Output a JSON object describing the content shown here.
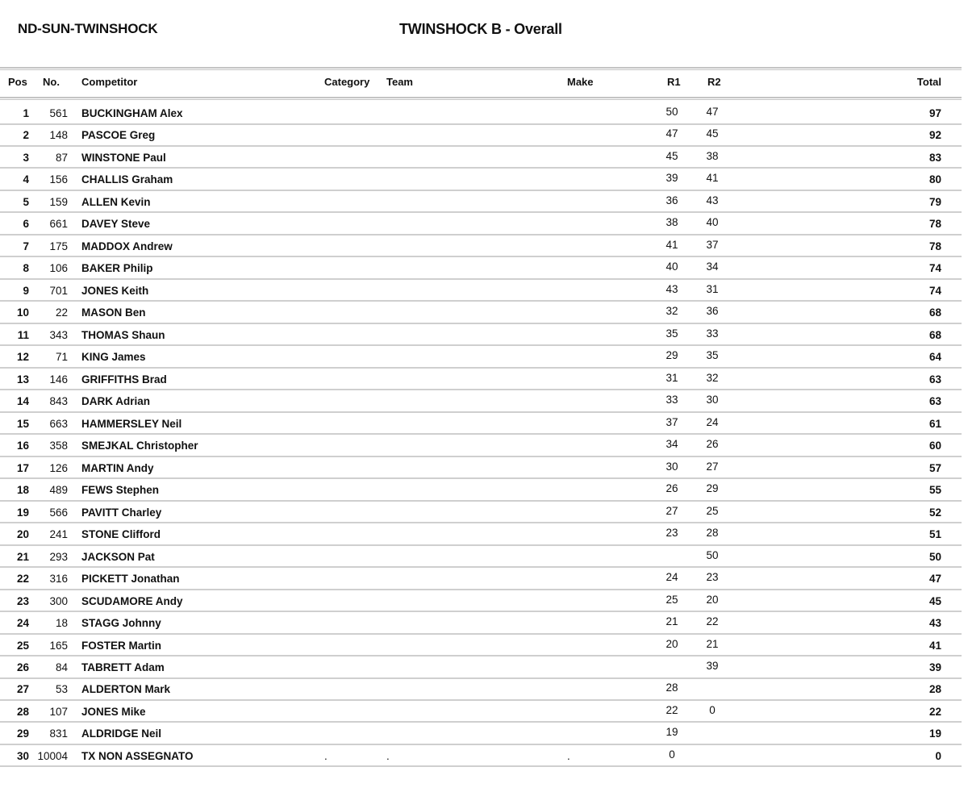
{
  "event_name": "ND-SUN-TWINSHOCK",
  "title": "TWINSHOCK B - Overall",
  "columns": {
    "pos": "Pos",
    "num": "No.",
    "competitor": "Competitor",
    "category": "Category",
    "team": "Team",
    "make": "Make",
    "r1": "R1",
    "r2": "R2",
    "total": "Total"
  },
  "rows": [
    {
      "pos": "1",
      "num": "561",
      "competitor": "BUCKINGHAM Alex",
      "category": "",
      "team": "",
      "make": "",
      "r1": "50",
      "r2": "47",
      "total": "97"
    },
    {
      "pos": "2",
      "num": "148",
      "competitor": "PASCOE Greg",
      "category": "",
      "team": "",
      "make": "",
      "r1": "47",
      "r2": "45",
      "total": "92"
    },
    {
      "pos": "3",
      "num": "87",
      "competitor": "WINSTONE Paul",
      "category": "",
      "team": "",
      "make": "",
      "r1": "45",
      "r2": "38",
      "total": "83"
    },
    {
      "pos": "4",
      "num": "156",
      "competitor": "CHALLIS Graham",
      "category": "",
      "team": "",
      "make": "",
      "r1": "39",
      "r2": "41",
      "total": "80"
    },
    {
      "pos": "5",
      "num": "159",
      "competitor": "ALLEN Kevin",
      "category": "",
      "team": "",
      "make": "",
      "r1": "36",
      "r2": "43",
      "total": "79"
    },
    {
      "pos": "6",
      "num": "661",
      "competitor": "DAVEY Steve",
      "category": "",
      "team": "",
      "make": "",
      "r1": "38",
      "r2": "40",
      "total": "78"
    },
    {
      "pos": "7",
      "num": "175",
      "competitor": "MADDOX Andrew",
      "category": "",
      "team": "",
      "make": "",
      "r1": "41",
      "r2": "37",
      "total": "78"
    },
    {
      "pos": "8",
      "num": "106",
      "competitor": "BAKER Philip",
      "category": "",
      "team": "",
      "make": "",
      "r1": "40",
      "r2": "34",
      "total": "74"
    },
    {
      "pos": "9",
      "num": "701",
      "competitor": "JONES Keith",
      "category": "",
      "team": "",
      "make": "",
      "r1": "43",
      "r2": "31",
      "total": "74"
    },
    {
      "pos": "10",
      "num": "22",
      "competitor": "MASON Ben",
      "category": "",
      "team": "",
      "make": "",
      "r1": "32",
      "r2": "36",
      "total": "68"
    },
    {
      "pos": "11",
      "num": "343",
      "competitor": "THOMAS Shaun",
      "category": "",
      "team": "",
      "make": "",
      "r1": "35",
      "r2": "33",
      "total": "68"
    },
    {
      "pos": "12",
      "num": "71",
      "competitor": "KING James",
      "category": "",
      "team": "",
      "make": "",
      "r1": "29",
      "r2": "35",
      "total": "64"
    },
    {
      "pos": "13",
      "num": "146",
      "competitor": "GRIFFITHS Brad",
      "category": "",
      "team": "",
      "make": "",
      "r1": "31",
      "r2": "32",
      "total": "63"
    },
    {
      "pos": "14",
      "num": "843",
      "competitor": "DARK Adrian",
      "category": "",
      "team": "",
      "make": "",
      "r1": "33",
      "r2": "30",
      "total": "63"
    },
    {
      "pos": "15",
      "num": "663",
      "competitor": "HAMMERSLEY Neil",
      "category": "",
      "team": "",
      "make": "",
      "r1": "37",
      "r2": "24",
      "total": "61"
    },
    {
      "pos": "16",
      "num": "358",
      "competitor": "SMEJKAL Christopher",
      "category": "",
      "team": "",
      "make": "",
      "r1": "34",
      "r2": "26",
      "total": "60"
    },
    {
      "pos": "17",
      "num": "126",
      "competitor": "MARTIN Andy",
      "category": "",
      "team": "",
      "make": "",
      "r1": "30",
      "r2": "27",
      "total": "57"
    },
    {
      "pos": "18",
      "num": "489",
      "competitor": "FEWS Stephen",
      "category": "",
      "team": "",
      "make": "",
      "r1": "26",
      "r2": "29",
      "total": "55"
    },
    {
      "pos": "19",
      "num": "566",
      "competitor": "PAVITT Charley",
      "category": "",
      "team": "",
      "make": "",
      "r1": "27",
      "r2": "25",
      "total": "52"
    },
    {
      "pos": "20",
      "num": "241",
      "competitor": "STONE Clifford",
      "category": "",
      "team": "",
      "make": "",
      "r1": "23",
      "r2": "28",
      "total": "51"
    },
    {
      "pos": "21",
      "num": "293",
      "competitor": "JACKSON Pat",
      "category": "",
      "team": "",
      "make": "",
      "r1": "",
      "r2": "50",
      "total": "50"
    },
    {
      "pos": "22",
      "num": "316",
      "competitor": "PICKETT Jonathan",
      "category": "",
      "team": "",
      "make": "",
      "r1": "24",
      "r2": "23",
      "total": "47"
    },
    {
      "pos": "23",
      "num": "300",
      "competitor": "SCUDAMORE Andy",
      "category": "",
      "team": "",
      "make": "",
      "r1": "25",
      "r2": "20",
      "total": "45"
    },
    {
      "pos": "24",
      "num": "18",
      "competitor": "STAGG Johnny",
      "category": "",
      "team": "",
      "make": "",
      "r1": "21",
      "r2": "22",
      "total": "43"
    },
    {
      "pos": "25",
      "num": "165",
      "competitor": "FOSTER Martin",
      "category": "",
      "team": "",
      "make": "",
      "r1": "20",
      "r2": "21",
      "total": "41"
    },
    {
      "pos": "26",
      "num": "84",
      "competitor": "TABRETT Adam",
      "category": "",
      "team": "",
      "make": "",
      "r1": "",
      "r2": "39",
      "total": "39"
    },
    {
      "pos": "27",
      "num": "53",
      "competitor": "ALDERTON Mark",
      "category": "",
      "team": "",
      "make": "",
      "r1": "28",
      "r2": "",
      "total": "28"
    },
    {
      "pos": "28",
      "num": "107",
      "competitor": "JONES Mike",
      "category": "",
      "team": "",
      "make": "",
      "r1": "22",
      "r2": "0",
      "total": "22"
    },
    {
      "pos": "29",
      "num": "831",
      "competitor": "ALDRIDGE Neil",
      "category": "",
      "team": "",
      "make": "",
      "r1": "19",
      "r2": "",
      "total": "19"
    },
    {
      "pos": "30",
      "num": "10004",
      "competitor": "TX NON ASSEGNATO",
      "category": ".",
      "team": ".",
      "make": ".",
      "r1": "0",
      "r2": "",
      "total": "0"
    }
  ]
}
